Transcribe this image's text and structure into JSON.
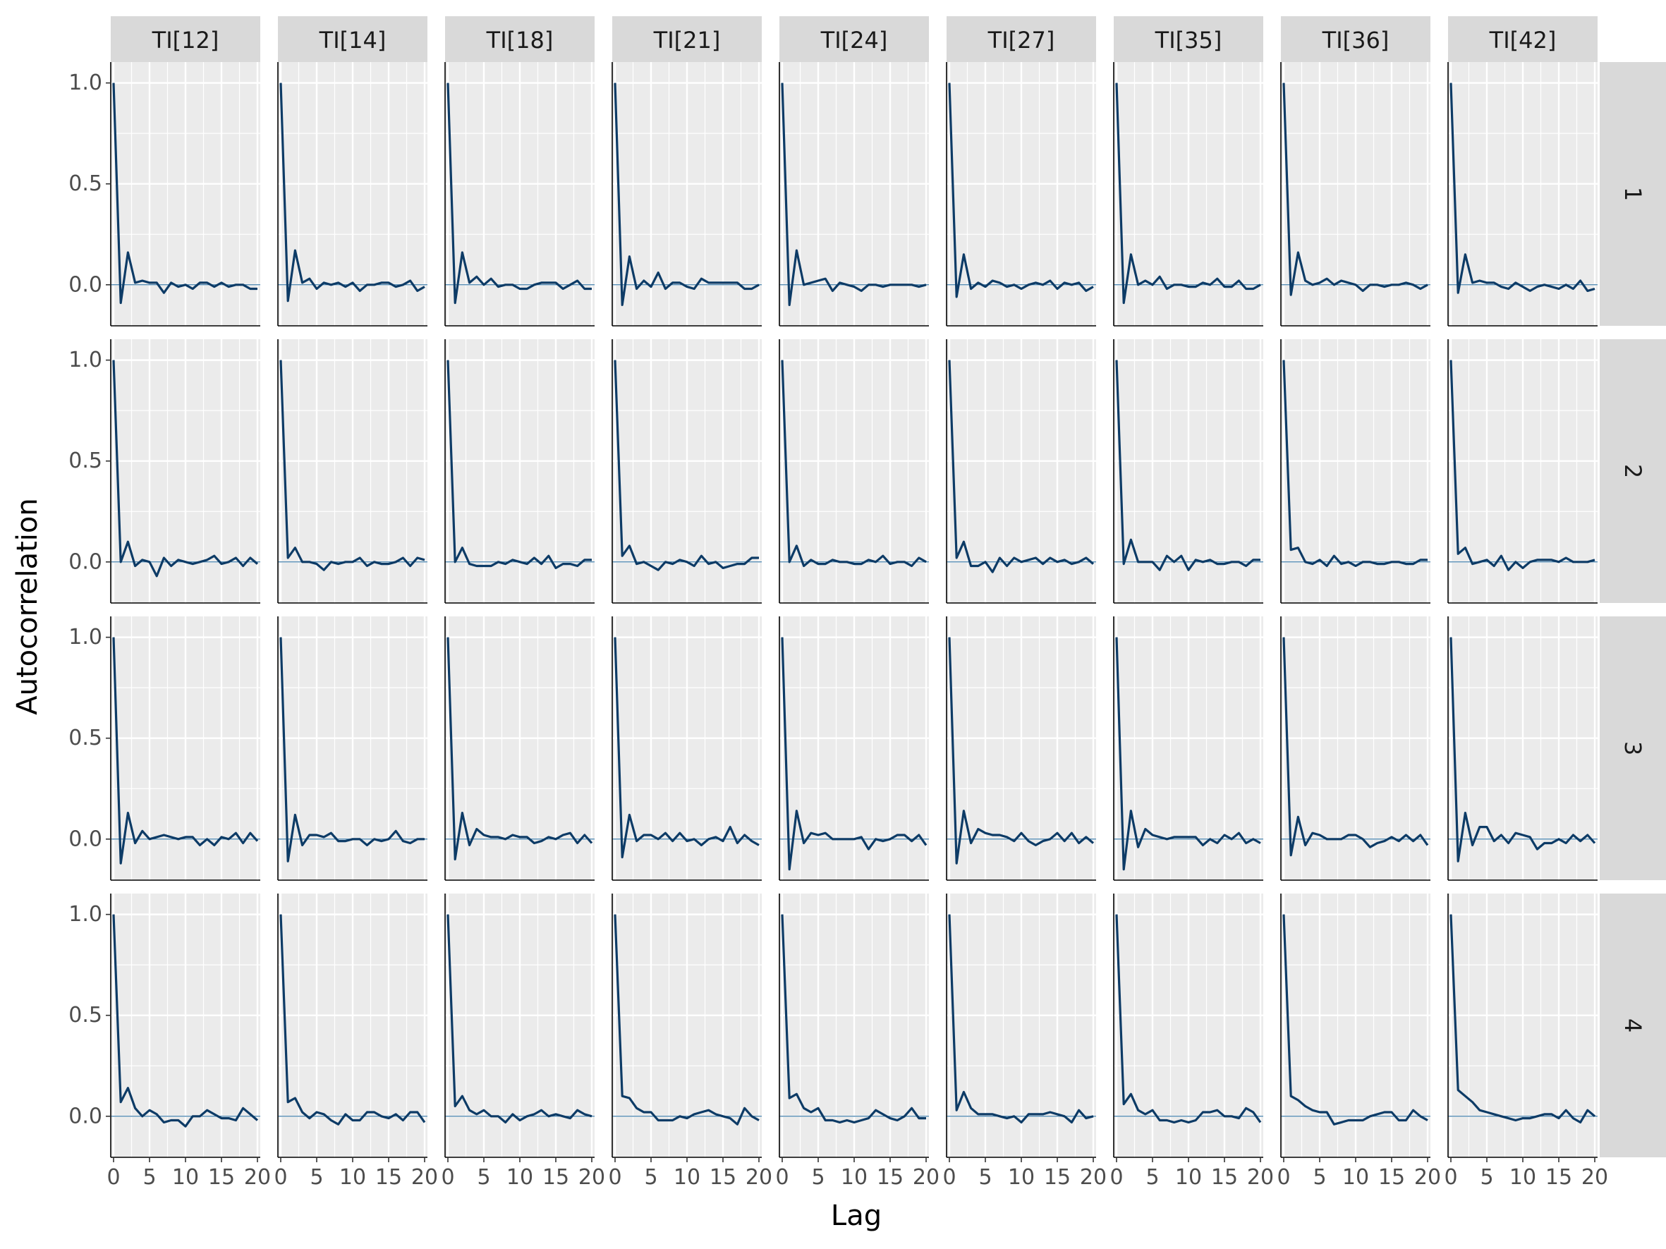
{
  "chart_data": {
    "type": "line",
    "xlabel": "Lag",
    "ylabel": "Autocorrelation",
    "column_facets": [
      "TI[12]",
      "TI[14]",
      "TI[18]",
      "TI[21]",
      "TI[24]",
      "TI[27]",
      "TI[35]",
      "TI[36]",
      "TI[42]"
    ],
    "row_facets": [
      "1",
      "2",
      "3",
      "4"
    ],
    "xlim": [
      0,
      20
    ],
    "ylim": [
      -0.2,
      1.1
    ],
    "x_ticks": [
      0,
      5,
      10,
      15,
      20
    ],
    "x_tick_labels": [
      "0",
      "5",
      "10",
      "15",
      "20"
    ],
    "y_ticks": [
      0.0,
      0.5,
      1.0
    ],
    "y_tick_labels": [
      "0.0",
      "0.5",
      "1.0"
    ],
    "grid": true,
    "reference_line_y": 0,
    "line_color": "#0d3b66",
    "reference_line_color": "#3f7ca8",
    "panel_background": "#ebebeb",
    "strip_background": "#d9d9d9",
    "x": [
      0,
      1,
      2,
      3,
      4,
      5,
      6,
      7,
      8,
      9,
      10,
      11,
      12,
      13,
      14,
      15,
      16,
      17,
      18,
      19,
      20
    ],
    "panels": [
      {
        "row": "1",
        "col": "TI[12]",
        "values": [
          1.0,
          -0.09,
          0.16,
          0.01,
          0.02,
          0.01,
          0.01,
          -0.04,
          0.01,
          -0.01,
          0.0,
          -0.02,
          0.01,
          0.01,
          -0.01,
          0.01,
          -0.01,
          0.0,
          0.0,
          -0.02,
          -0.02
        ]
      },
      {
        "row": "1",
        "col": "TI[14]",
        "values": [
          1.0,
          -0.08,
          0.17,
          0.01,
          0.03,
          -0.02,
          0.01,
          0.0,
          0.01,
          -0.01,
          0.01,
          -0.03,
          0.0,
          0.0,
          0.01,
          0.01,
          -0.01,
          0.0,
          0.02,
          -0.03,
          -0.01
        ]
      },
      {
        "row": "1",
        "col": "TI[18]",
        "values": [
          1.0,
          -0.09,
          0.16,
          0.01,
          0.04,
          0.0,
          0.03,
          -0.01,
          0.0,
          0.0,
          -0.02,
          -0.02,
          0.0,
          0.01,
          0.01,
          0.01,
          -0.02,
          0.0,
          0.02,
          -0.02,
          -0.02
        ]
      },
      {
        "row": "1",
        "col": "TI[21]",
        "values": [
          1.0,
          -0.1,
          0.14,
          -0.02,
          0.02,
          -0.01,
          0.06,
          -0.02,
          0.01,
          0.01,
          -0.01,
          -0.02,
          0.03,
          0.01,
          0.01,
          0.01,
          0.01,
          0.01,
          -0.02,
          -0.02,
          0.0
        ]
      },
      {
        "row": "1",
        "col": "TI[24]",
        "values": [
          1.0,
          -0.1,
          0.17,
          0.0,
          0.01,
          0.02,
          0.03,
          -0.03,
          0.01,
          0.0,
          -0.01,
          -0.03,
          0.0,
          0.0,
          -0.01,
          0.0,
          0.0,
          0.0,
          0.0,
          -0.01,
          0.0
        ]
      },
      {
        "row": "1",
        "col": "TI[27]",
        "values": [
          1.0,
          -0.06,
          0.15,
          -0.02,
          0.01,
          -0.01,
          0.02,
          0.01,
          -0.01,
          0.0,
          -0.02,
          0.0,
          0.01,
          0.0,
          0.02,
          -0.02,
          0.01,
          0.0,
          0.01,
          -0.03,
          -0.01
        ]
      },
      {
        "row": "1",
        "col": "TI[35]",
        "values": [
          1.0,
          -0.09,
          0.15,
          0.0,
          0.02,
          0.0,
          0.04,
          -0.02,
          0.0,
          0.0,
          -0.01,
          -0.01,
          0.01,
          0.0,
          0.03,
          -0.01,
          -0.01,
          0.02,
          -0.02,
          -0.02,
          0.0
        ]
      },
      {
        "row": "1",
        "col": "TI[36]",
        "values": [
          1.0,
          -0.05,
          0.16,
          0.02,
          0.0,
          0.01,
          0.03,
          0.0,
          0.02,
          0.01,
          0.0,
          -0.03,
          0.0,
          0.0,
          -0.01,
          0.0,
          0.0,
          0.01,
          0.0,
          -0.02,
          0.0
        ]
      },
      {
        "row": "1",
        "col": "TI[42]",
        "values": [
          1.0,
          -0.04,
          0.15,
          0.01,
          0.02,
          0.01,
          0.01,
          -0.01,
          -0.02,
          0.01,
          -0.01,
          -0.03,
          -0.01,
          0.0,
          -0.01,
          -0.02,
          0.0,
          -0.02,
          0.02,
          -0.03,
          -0.02
        ]
      },
      {
        "row": "2",
        "col": "TI[12]",
        "values": [
          1.0,
          0.0,
          0.1,
          -0.02,
          0.01,
          0.0,
          -0.07,
          0.02,
          -0.02,
          0.01,
          0.0,
          -0.01,
          0.0,
          0.01,
          0.03,
          -0.01,
          0.0,
          0.02,
          -0.02,
          0.02,
          -0.01
        ]
      },
      {
        "row": "2",
        "col": "TI[14]",
        "values": [
          1.0,
          0.02,
          0.07,
          0.0,
          0.0,
          -0.01,
          -0.04,
          0.0,
          -0.01,
          0.0,
          0.0,
          0.02,
          -0.02,
          0.0,
          -0.01,
          -0.01,
          0.0,
          0.02,
          -0.02,
          0.02,
          0.01
        ]
      },
      {
        "row": "2",
        "col": "TI[18]",
        "values": [
          1.0,
          0.0,
          0.07,
          -0.01,
          -0.02,
          -0.02,
          -0.02,
          0.0,
          -0.01,
          0.01,
          0.0,
          -0.01,
          0.02,
          -0.01,
          0.03,
          -0.03,
          -0.01,
          -0.01,
          -0.02,
          0.01,
          0.01
        ]
      },
      {
        "row": "2",
        "col": "TI[21]",
        "values": [
          1.0,
          0.03,
          0.08,
          -0.01,
          0.0,
          -0.02,
          -0.04,
          0.0,
          -0.01,
          0.01,
          0.0,
          -0.02,
          0.03,
          -0.01,
          0.0,
          -0.03,
          -0.02,
          -0.01,
          -0.01,
          0.02,
          0.02
        ]
      },
      {
        "row": "2",
        "col": "TI[24]",
        "values": [
          1.0,
          0.0,
          0.08,
          -0.02,
          0.01,
          -0.01,
          -0.01,
          0.01,
          0.0,
          0.0,
          -0.01,
          -0.01,
          0.01,
          0.0,
          0.03,
          -0.01,
          0.0,
          0.0,
          -0.02,
          0.02,
          0.0
        ]
      },
      {
        "row": "2",
        "col": "TI[27]",
        "values": [
          1.0,
          0.02,
          0.1,
          -0.02,
          -0.02,
          0.0,
          -0.05,
          0.02,
          -0.02,
          0.02,
          0.0,
          0.01,
          0.02,
          -0.01,
          0.02,
          0.0,
          0.01,
          -0.01,
          0.0,
          0.02,
          -0.01
        ]
      },
      {
        "row": "2",
        "col": "TI[35]",
        "values": [
          1.0,
          -0.01,
          0.11,
          0.0,
          0.0,
          0.0,
          -0.04,
          0.03,
          0.0,
          0.03,
          -0.04,
          0.01,
          0.0,
          0.01,
          -0.01,
          -0.01,
          0.0,
          0.0,
          -0.02,
          0.01,
          0.01
        ]
      },
      {
        "row": "2",
        "col": "TI[36]",
        "values": [
          1.0,
          0.06,
          0.07,
          0.0,
          -0.01,
          0.01,
          -0.02,
          0.03,
          -0.01,
          0.0,
          -0.02,
          0.0,
          0.0,
          -0.01,
          -0.01,
          0.0,
          0.0,
          -0.01,
          -0.01,
          0.01,
          0.01
        ]
      },
      {
        "row": "2",
        "col": "TI[42]",
        "values": [
          1.0,
          0.04,
          0.07,
          -0.01,
          0.0,
          0.01,
          -0.02,
          0.03,
          -0.04,
          0.0,
          -0.03,
          0.0,
          0.01,
          0.01,
          0.01,
          0.0,
          0.02,
          0.0,
          0.0,
          0.0,
          0.01
        ]
      },
      {
        "row": "3",
        "col": "TI[12]",
        "values": [
          1.0,
          -0.12,
          0.13,
          -0.02,
          0.04,
          0.0,
          0.01,
          0.02,
          0.01,
          0.0,
          0.01,
          0.01,
          -0.03,
          0.0,
          -0.03,
          0.01,
          0.0,
          0.03,
          -0.02,
          0.03,
          -0.01
        ]
      },
      {
        "row": "3",
        "col": "TI[14]",
        "values": [
          1.0,
          -0.11,
          0.12,
          -0.03,
          0.02,
          0.02,
          0.01,
          0.03,
          -0.01,
          -0.01,
          0.0,
          0.0,
          -0.03,
          0.0,
          -0.01,
          0.0,
          0.04,
          -0.01,
          -0.02,
          0.0,
          0.0
        ]
      },
      {
        "row": "3",
        "col": "TI[18]",
        "values": [
          1.0,
          -0.1,
          0.13,
          -0.03,
          0.05,
          0.02,
          0.01,
          0.01,
          0.0,
          0.02,
          0.01,
          0.01,
          -0.02,
          -0.01,
          0.01,
          0.0,
          0.02,
          0.03,
          -0.02,
          0.02,
          -0.02
        ]
      },
      {
        "row": "3",
        "col": "TI[21]",
        "values": [
          1.0,
          -0.09,
          0.12,
          -0.01,
          0.02,
          0.02,
          0.0,
          0.03,
          -0.01,
          0.03,
          -0.01,
          0.0,
          -0.03,
          0.0,
          0.01,
          -0.01,
          0.06,
          -0.02,
          0.02,
          -0.01,
          -0.03
        ]
      },
      {
        "row": "3",
        "col": "TI[24]",
        "values": [
          1.0,
          -0.15,
          0.14,
          -0.02,
          0.03,
          0.02,
          0.03,
          0.0,
          0.0,
          0.0,
          0.0,
          0.01,
          -0.05,
          0.0,
          -0.01,
          0.0,
          0.02,
          0.02,
          -0.01,
          0.02,
          -0.03
        ]
      },
      {
        "row": "3",
        "col": "TI[27]",
        "values": [
          1.0,
          -0.12,
          0.14,
          -0.02,
          0.05,
          0.03,
          0.02,
          0.02,
          0.01,
          -0.01,
          0.03,
          -0.01,
          -0.03,
          -0.01,
          0.0,
          0.03,
          -0.01,
          0.03,
          -0.02,
          0.01,
          -0.02
        ]
      },
      {
        "row": "3",
        "col": "TI[35]",
        "values": [
          1.0,
          -0.15,
          0.14,
          -0.04,
          0.05,
          0.02,
          0.01,
          0.0,
          0.01,
          0.01,
          0.01,
          0.01,
          -0.03,
          0.0,
          -0.02,
          0.02,
          0.0,
          0.03,
          -0.02,
          0.0,
          -0.02
        ]
      },
      {
        "row": "3",
        "col": "TI[36]",
        "values": [
          1.0,
          -0.08,
          0.11,
          -0.03,
          0.03,
          0.02,
          0.0,
          0.0,
          0.0,
          0.02,
          0.02,
          0.0,
          -0.04,
          -0.02,
          -0.01,
          0.01,
          -0.01,
          0.02,
          -0.01,
          0.02,
          -0.03
        ]
      },
      {
        "row": "3",
        "col": "TI[42]",
        "values": [
          1.0,
          -0.11,
          0.13,
          -0.03,
          0.06,
          0.06,
          -0.01,
          0.02,
          -0.02,
          0.03,
          0.02,
          0.01,
          -0.05,
          -0.02,
          -0.02,
          0.0,
          -0.02,
          0.02,
          -0.01,
          0.02,
          -0.02
        ]
      },
      {
        "row": "4",
        "col": "TI[12]",
        "values": [
          1.0,
          0.07,
          0.14,
          0.04,
          0.0,
          0.03,
          0.01,
          -0.03,
          -0.02,
          -0.02,
          -0.05,
          0.0,
          0.0,
          0.03,
          0.01,
          -0.01,
          -0.01,
          -0.02,
          0.04,
          0.01,
          -0.02
        ]
      },
      {
        "row": "4",
        "col": "TI[14]",
        "values": [
          1.0,
          0.07,
          0.09,
          0.02,
          -0.01,
          0.02,
          0.01,
          -0.02,
          -0.04,
          0.01,
          -0.02,
          -0.02,
          0.02,
          0.02,
          0.0,
          -0.01,
          0.01,
          -0.02,
          0.02,
          0.02,
          -0.03
        ]
      },
      {
        "row": "4",
        "col": "TI[18]",
        "values": [
          1.0,
          0.05,
          0.1,
          0.03,
          0.01,
          0.03,
          0.0,
          0.0,
          -0.03,
          0.01,
          -0.02,
          0.0,
          0.01,
          0.03,
          0.0,
          0.01,
          0.0,
          -0.01,
          0.03,
          0.01,
          0.0
        ]
      },
      {
        "row": "4",
        "col": "TI[21]",
        "values": [
          1.0,
          0.1,
          0.09,
          0.04,
          0.02,
          0.02,
          -0.02,
          -0.02,
          -0.02,
          0.0,
          -0.01,
          0.01,
          0.02,
          0.03,
          0.01,
          0.0,
          -0.01,
          -0.04,
          0.04,
          0.0,
          -0.02
        ]
      },
      {
        "row": "4",
        "col": "TI[24]",
        "values": [
          1.0,
          0.09,
          0.11,
          0.04,
          0.02,
          0.04,
          -0.02,
          -0.02,
          -0.03,
          -0.02,
          -0.03,
          -0.02,
          -0.01,
          0.03,
          0.01,
          -0.01,
          -0.02,
          0.0,
          0.04,
          -0.01,
          -0.01
        ]
      },
      {
        "row": "4",
        "col": "TI[27]",
        "values": [
          1.0,
          0.03,
          0.12,
          0.04,
          0.01,
          0.01,
          0.01,
          0.0,
          -0.01,
          0.0,
          -0.03,
          0.01,
          0.01,
          0.01,
          0.02,
          0.01,
          0.0,
          -0.03,
          0.03,
          -0.01,
          0.0
        ]
      },
      {
        "row": "4",
        "col": "TI[35]",
        "values": [
          1.0,
          0.06,
          0.11,
          0.03,
          0.01,
          0.03,
          -0.02,
          -0.02,
          -0.03,
          -0.02,
          -0.03,
          -0.02,
          0.02,
          0.02,
          0.03,
          0.0,
          0.0,
          -0.01,
          0.04,
          0.02,
          -0.03
        ]
      },
      {
        "row": "4",
        "col": "TI[36]",
        "values": [
          1.0,
          0.1,
          0.08,
          0.05,
          0.03,
          0.02,
          0.02,
          -0.04,
          -0.03,
          -0.02,
          -0.02,
          -0.02,
          0.0,
          0.01,
          0.02,
          0.02,
          -0.02,
          -0.02,
          0.03,
          0.0,
          -0.02
        ]
      },
      {
        "row": "4",
        "col": "TI[42]",
        "values": [
          1.0,
          0.13,
          0.1,
          0.07,
          0.03,
          0.02,
          0.01,
          0.0,
          -0.01,
          -0.02,
          -0.01,
          -0.01,
          0.0,
          0.01,
          0.01,
          -0.01,
          0.03,
          -0.01,
          -0.03,
          0.03,
          0.0
        ]
      }
    ]
  }
}
